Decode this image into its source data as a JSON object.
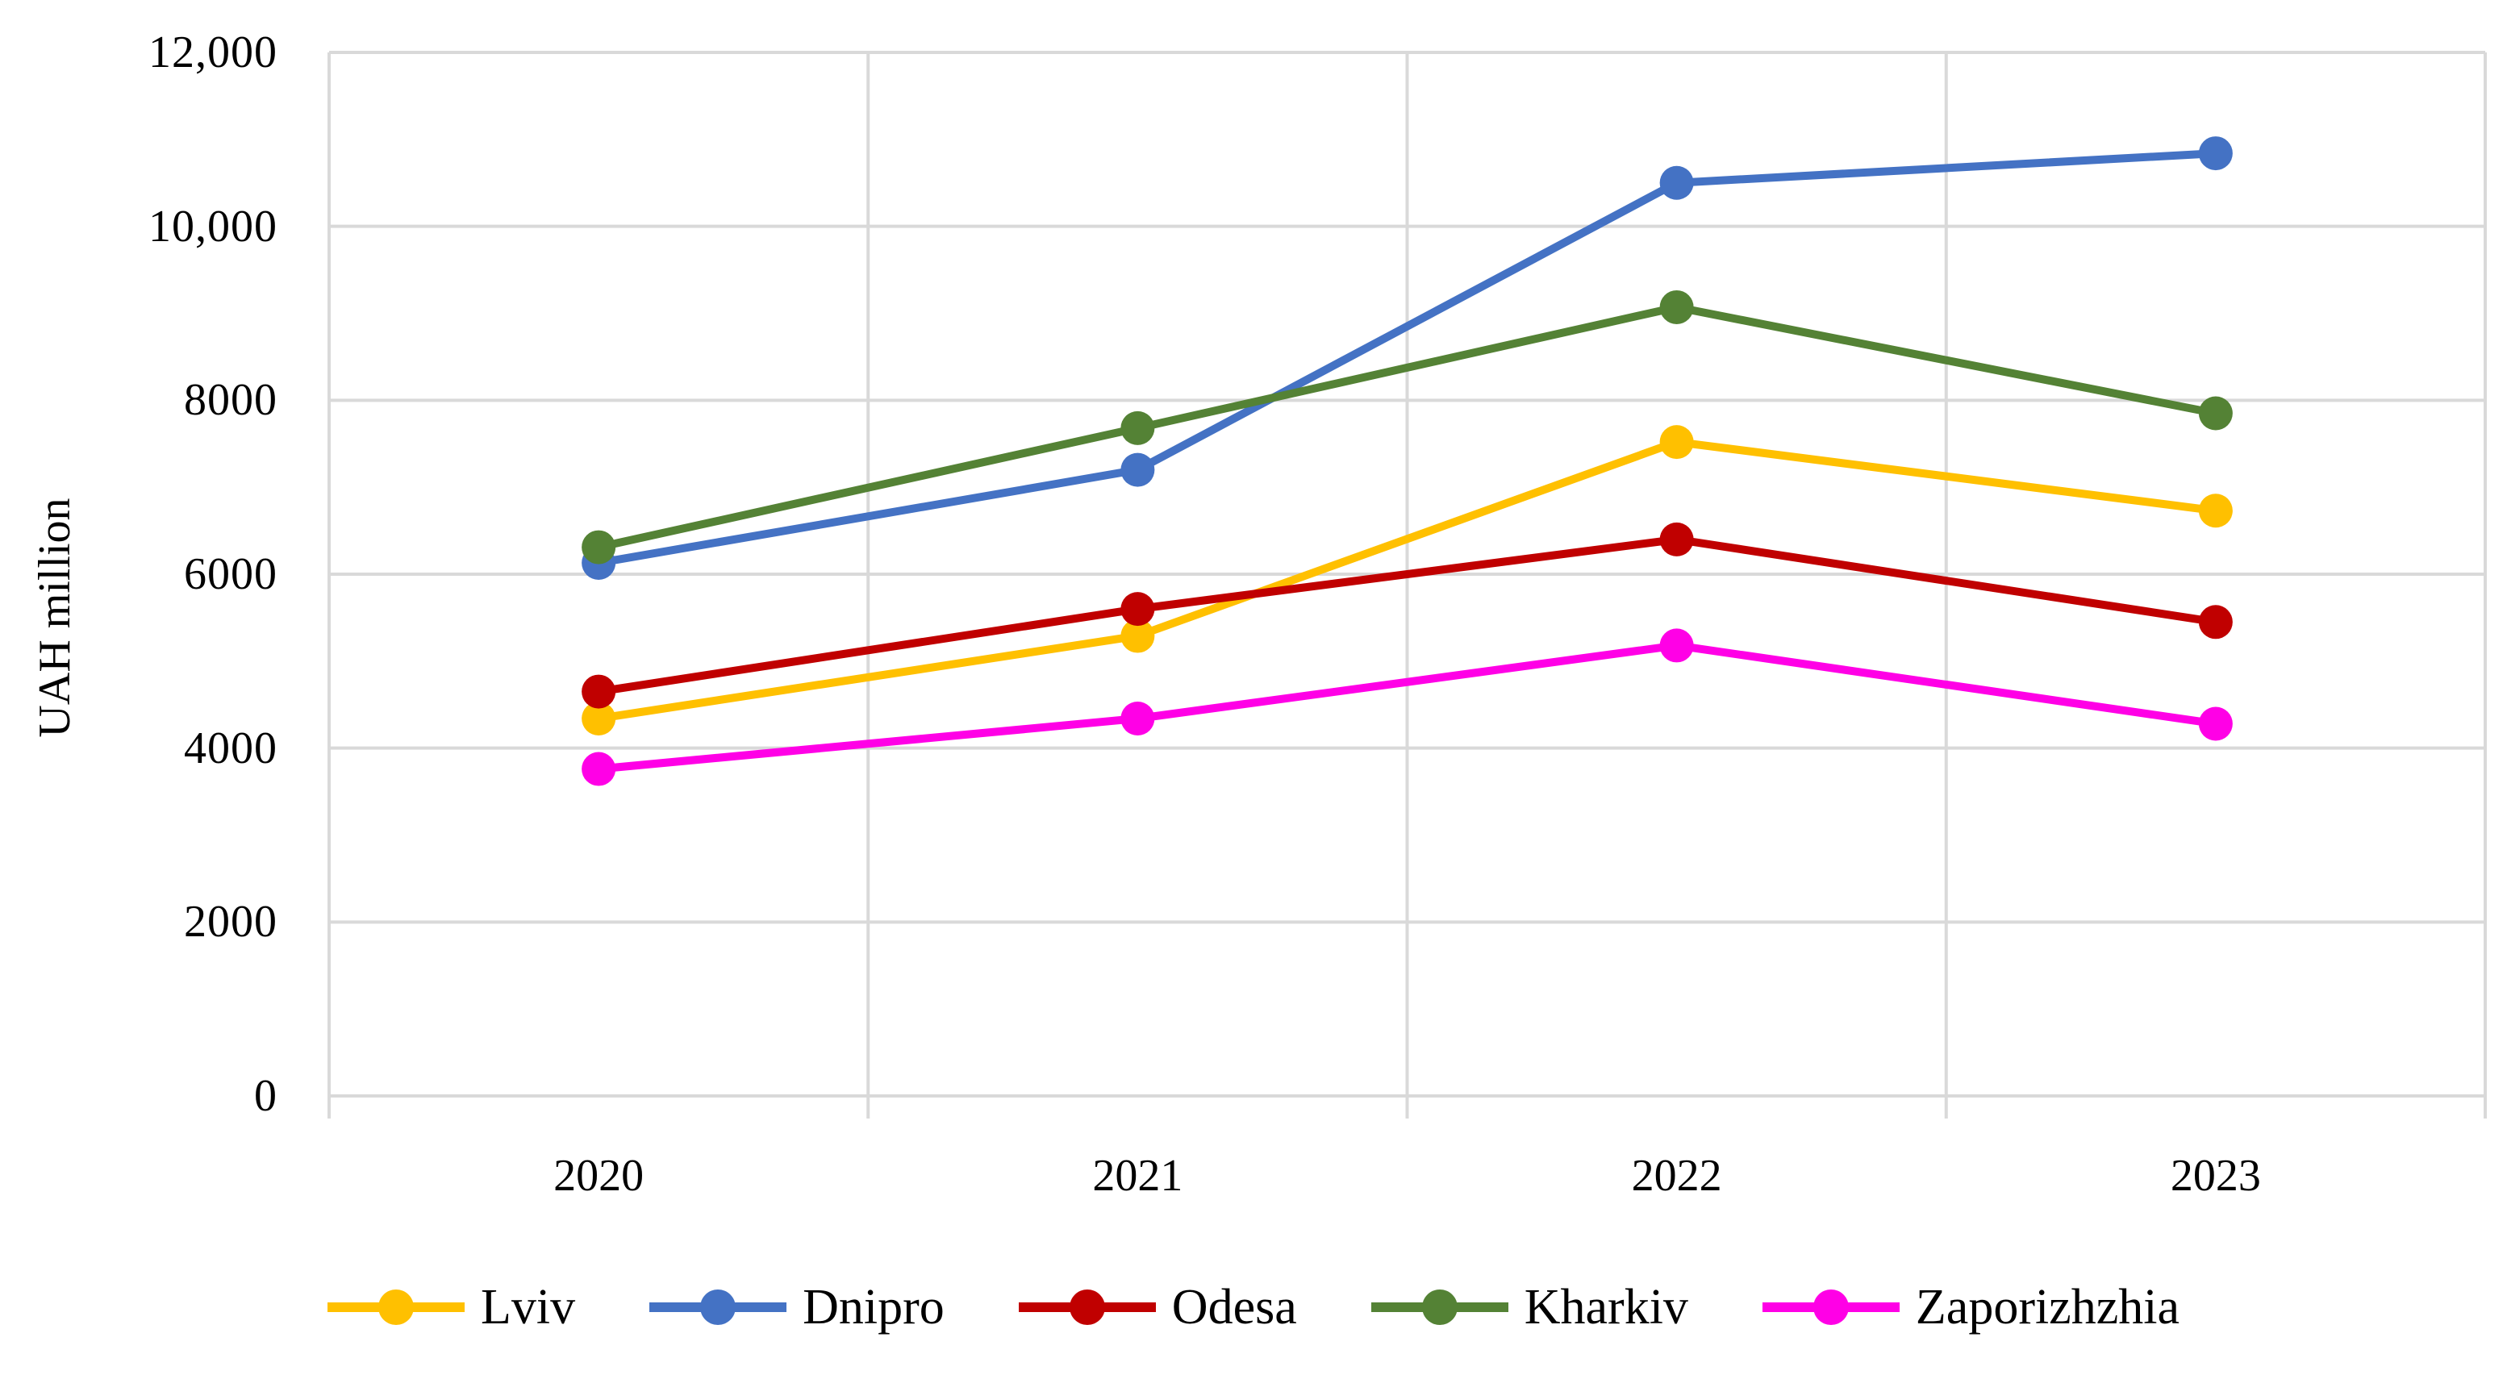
{
  "chart_data": {
    "type": "line",
    "title": "",
    "categories": [
      "2020",
      "2021",
      "2022",
      "2023"
    ],
    "series": [
      {
        "name": "Lviv",
        "color": "#FFC000",
        "values": [
          4340,
          5290,
          7520,
          6730
        ]
      },
      {
        "name": "Dnipro",
        "color": "#4472C4",
        "values": [
          6130,
          7200,
          10500,
          10840
        ]
      },
      {
        "name": "Odesa",
        "color": "#C00000",
        "values": [
          4650,
          5600,
          6400,
          5450
        ]
      },
      {
        "name": "Kharkiv",
        "color": "#548235",
        "values": [
          6310,
          7680,
          9070,
          7850
        ]
      },
      {
        "name": "Zaporizhzhia",
        "color": "#FF00E6",
        "values": [
          3760,
          4340,
          5180,
          4280
        ]
      }
    ],
    "xlabel": "",
    "ylabel": "UAH million",
    "ylim": [
      0,
      12000
    ],
    "ytick_step": 2000,
    "ytick_labels": [
      "0",
      "2000",
      "4000",
      "6000",
      "8000",
      "10,000",
      "12,000"
    ],
    "grid": true,
    "gridline_color": "#D9D9D9",
    "legend_position": "bottom"
  }
}
